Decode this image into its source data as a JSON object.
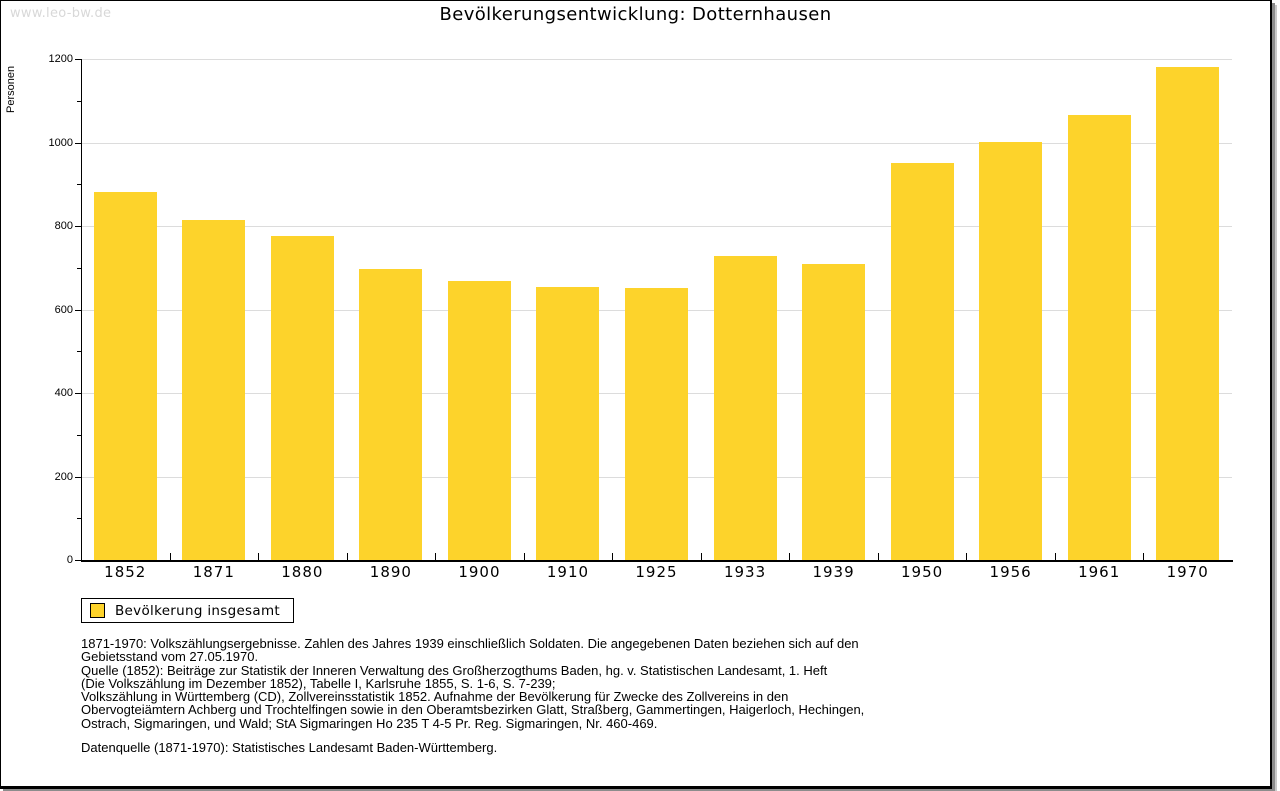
{
  "watermark": "www.leo-bw.de",
  "chart_data": {
    "type": "bar",
    "title": "Bevölkerungsentwicklung: Dotternhausen",
    "ylabel": "Personen",
    "xlabel": "",
    "categories": [
      "1852",
      "1871",
      "1880",
      "1890",
      "1900",
      "1910",
      "1925",
      "1933",
      "1939",
      "1950",
      "1956",
      "1961",
      "1970"
    ],
    "values": [
      881,
      815,
      777,
      696,
      668,
      655,
      652,
      727,
      708,
      952,
      1001,
      1066,
      1182
    ],
    "ylim": [
      0,
      1200
    ],
    "ytick_step": 200,
    "yminor_step": 100,
    "ytick_labels": [
      "0",
      "200",
      "400",
      "600",
      "800",
      "1000",
      "1200"
    ],
    "grid": true,
    "legend": {
      "position": "below-left",
      "entries": [
        "Bevölkerung insgesamt"
      ]
    },
    "bar_color": "#fdd32b"
  },
  "colors": {
    "bar": "#fdd32b",
    "grid": "#dcdcdc",
    "axis": "#000000",
    "watermark": "#d8d8d8"
  },
  "footnotes": {
    "lines": [
      "1871-1970: Volkszählungsergebnisse. Zahlen des Jahres 1939 einschließlich Soldaten. Die angegebenen Daten beziehen sich auf den",
      "Gebietsstand vom 27.05.1970.",
      "Quelle (1852): Beiträge zur Statistik der Inneren Verwaltung des Großherzogthums Baden, hg. v. Statistischen Landesamt, 1. Heft",
      "(Die Volkszählung im Dezember 1852), Tabelle I, Karlsruhe 1855, S. 1-6, S. 7-239;",
      "Volkszählung in Württemberg (CD), Zollvereinsstatistik 1852. Aufnahme der Bevölkerung für Zwecke des Zollvereins in den",
      "Obervogteiämtern Achberg und Trochtelfingen sowie in den Oberamtsbezirken Glatt, Straßberg, Gammertingen, Haigerloch, Hechingen,",
      "Ostrach, Sigmaringen, und Wald; StA Sigmaringen Ho 235 T 4-5 Pr. Reg. Sigmaringen, Nr. 460-469."
    ],
    "datenquelle": "Datenquelle (1871-1970): Statistisches Landesamt Baden-Württemberg."
  }
}
